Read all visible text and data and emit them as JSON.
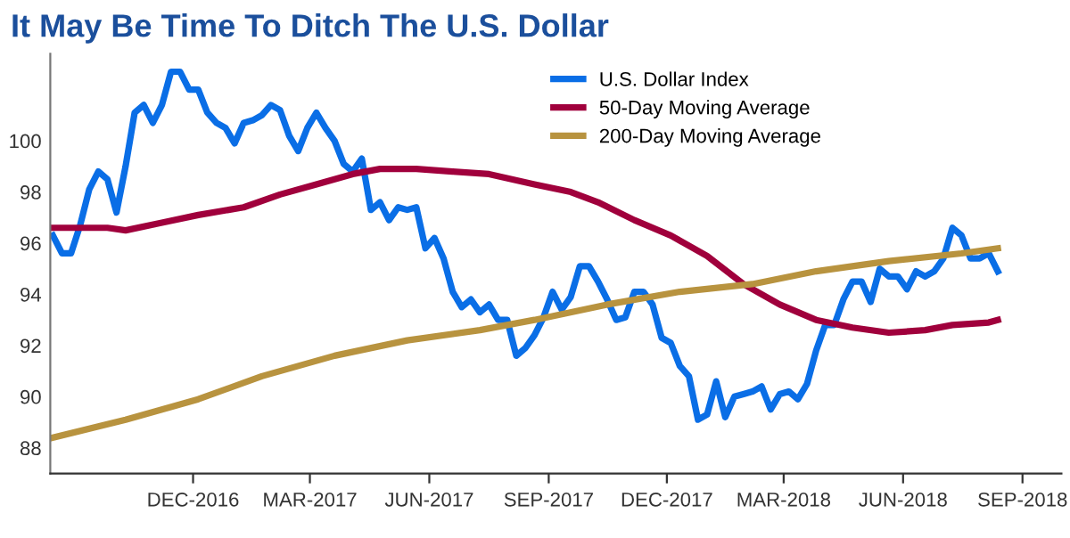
{
  "chart_data": {
    "type": "line",
    "title": "It May Be Time To Ditch The U.S. Dollar",
    "x": [
      "2016-08-15",
      "2016-08-22",
      "2016-08-29",
      "2016-09-05",
      "2016-09-12",
      "2016-09-19",
      "2016-09-26",
      "2016-10-03",
      "2016-10-10",
      "2016-10-17",
      "2016-10-24",
      "2016-10-31",
      "2016-11-07",
      "2016-11-14",
      "2016-11-21",
      "2016-11-28",
      "2016-12-05",
      "2016-12-12",
      "2016-12-19",
      "2016-12-26",
      "2017-01-02",
      "2017-01-09",
      "2017-01-16",
      "2017-01-23",
      "2017-01-30",
      "2017-02-06",
      "2017-02-13",
      "2017-02-20",
      "2017-02-27",
      "2017-03-06",
      "2017-03-13",
      "2017-03-20",
      "2017-03-27",
      "2017-04-03",
      "2017-04-10",
      "2017-04-17",
      "2017-04-24",
      "2017-05-01",
      "2017-05-08",
      "2017-05-15",
      "2017-05-22",
      "2017-05-29",
      "2017-06-05",
      "2017-06-12",
      "2017-06-19",
      "2017-06-26",
      "2017-07-03",
      "2017-07-10",
      "2017-07-17",
      "2017-07-24",
      "2017-07-31",
      "2017-08-07",
      "2017-08-14",
      "2017-08-21",
      "2017-08-28",
      "2017-09-04",
      "2017-09-11",
      "2017-09-18",
      "2017-09-25",
      "2017-10-02",
      "2017-10-09",
      "2017-10-16",
      "2017-10-23",
      "2017-10-30",
      "2017-11-06",
      "2017-11-13",
      "2017-11-20",
      "2017-11-27",
      "2017-12-04",
      "2017-12-11",
      "2017-12-18",
      "2017-12-25",
      "2018-01-01",
      "2018-01-08",
      "2018-01-15",
      "2018-01-22",
      "2018-01-29",
      "2018-02-05",
      "2018-02-12",
      "2018-02-19",
      "2018-02-26",
      "2018-03-05",
      "2018-03-12",
      "2018-03-19",
      "2018-03-26",
      "2018-04-02",
      "2018-04-09",
      "2018-04-16",
      "2018-04-23",
      "2018-04-30",
      "2018-05-07",
      "2018-05-14",
      "2018-05-21",
      "2018-05-28",
      "2018-06-04",
      "2018-06-11",
      "2018-06-18",
      "2018-06-25",
      "2018-07-02",
      "2018-07-09",
      "2018-07-16",
      "2018-07-23",
      "2018-07-30",
      "2018-08-06",
      "2018-08-13"
    ],
    "series": [
      {
        "name": "U.S. Dollar Index",
        "color": "#0a6ee6",
        "values": [
          96.3,
          95.6,
          95.6,
          96.7,
          98.1,
          98.8,
          98.5,
          97.2,
          99.0,
          101.1,
          101.4,
          100.7,
          101.4,
          102.7,
          102.7,
          102.0,
          102.0,
          101.1,
          100.7,
          100.5,
          99.9,
          100.7,
          100.8,
          101.0,
          101.4,
          101.2,
          100.2,
          99.6,
          100.5,
          101.1,
          100.5,
          100.0,
          99.1,
          98.8,
          99.3,
          97.3,
          97.6,
          96.9,
          97.4,
          97.3,
          97.4,
          95.8,
          96.2,
          95.4,
          94.1,
          93.5,
          93.8,
          93.3,
          93.6,
          93.0,
          93.0,
          91.6,
          91.9,
          92.4,
          93.1,
          94.1,
          93.4,
          93.9,
          95.1,
          95.1,
          94.5,
          93.8,
          93.0,
          93.1,
          94.1,
          94.1,
          93.6,
          92.3,
          92.1,
          91.2,
          90.8,
          89.1,
          89.3,
          90.6,
          89.2,
          90.0,
          90.1,
          90.2,
          90.4,
          89.5,
          90.1,
          90.2,
          89.9,
          90.5,
          91.8,
          92.8,
          92.8,
          93.8,
          94.5,
          94.5,
          93.7,
          95.0,
          94.7,
          94.7,
          94.2,
          94.9,
          94.7,
          94.9,
          95.4,
          96.6,
          96.3,
          95.4,
          95.4,
          95.6,
          94.9
        ]
      },
      {
        "name": "50-Day Moving Average",
        "color": "#a0003c",
        "x": [
          "2016-08-15",
          "2016-09-26",
          "2016-10-10",
          "2016-11-07",
          "2016-12-05",
          "2017-01-09",
          "2017-02-06",
          "2017-03-06",
          "2017-04-03",
          "2017-04-24",
          "2017-05-22",
          "2017-06-19",
          "2017-07-17",
          "2017-08-21",
          "2017-09-18",
          "2017-10-09",
          "2017-11-06",
          "2017-12-04",
          "2018-01-01",
          "2018-01-29",
          "2018-02-26",
          "2018-03-26",
          "2018-04-23",
          "2018-05-21",
          "2018-06-18",
          "2018-07-09",
          "2018-08-06",
          "2018-08-13"
        ],
        "values": [
          96.6,
          96.6,
          96.5,
          96.8,
          97.1,
          97.4,
          97.9,
          98.3,
          98.7,
          98.9,
          98.9,
          98.8,
          98.7,
          98.3,
          98.0,
          97.6,
          96.9,
          96.3,
          95.5,
          94.4,
          93.6,
          93.0,
          92.7,
          92.5,
          92.6,
          92.8,
          92.9,
          93.0
        ]
      },
      {
        "name": "200-Day Moving Average",
        "color": "#b8933f",
        "x": [
          "2016-08-15",
          "2016-10-10",
          "2016-12-05",
          "2017-01-23",
          "2017-03-20",
          "2017-05-15",
          "2017-07-10",
          "2017-08-21",
          "2017-10-16",
          "2017-12-11",
          "2018-02-05",
          "2018-03-26",
          "2018-05-21",
          "2018-07-16",
          "2018-08-13"
        ],
        "values": [
          88.4,
          89.1,
          89.9,
          90.8,
          91.6,
          92.2,
          92.6,
          93.0,
          93.6,
          94.1,
          94.4,
          94.9,
          95.3,
          95.6,
          95.8
        ]
      }
    ],
    "xlim": [
      "2016-08-13",
      "2018-10-01"
    ],
    "xticks": [
      {
        "value": "2016-12-01",
        "label": "DEC-2016"
      },
      {
        "value": "2017-03-01",
        "label": "MAR-2017"
      },
      {
        "value": "2017-06-01",
        "label": "JUN-2017"
      },
      {
        "value": "2017-09-01",
        "label": "SEP-2017"
      },
      {
        "value": "2017-12-01",
        "label": "DEC-2017"
      },
      {
        "value": "2018-03-01",
        "label": "MAR-2018"
      },
      {
        "value": "2018-06-01",
        "label": "JUN-2018"
      },
      {
        "value": "2018-09-01",
        "label": "SEP-2018"
      }
    ],
    "ylim": [
      87,
      103.4
    ],
    "yticks": [
      88,
      90,
      92,
      94,
      96,
      98,
      100
    ],
    "grid": false,
    "legend": "top right",
    "marker": "none",
    "line_style": "solid"
  }
}
